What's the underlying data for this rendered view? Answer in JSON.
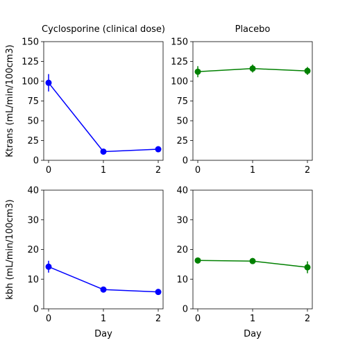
{
  "chart_data": [
    {
      "type": "line",
      "title": "Cyclosporine (clinical dose)",
      "xlabel": "",
      "ylabel": "Ktrans (mL/min/100cm3)",
      "x": [
        0,
        1,
        2
      ],
      "xticks": [
        "0",
        "1",
        "2"
      ],
      "yticks": [
        "0",
        "25",
        "50",
        "75",
        "100",
        "125",
        "150"
      ],
      "ylim": [
        0,
        150
      ],
      "grid": false,
      "series": [
        {
          "values": [
            98,
            11,
            14
          ],
          "errors": [
            11,
            1.5,
            1.5
          ],
          "color": "#0000ff"
        }
      ]
    },
    {
      "type": "line",
      "title": "Placebo",
      "xlabel": "",
      "ylabel": "",
      "x": [
        0,
        1,
        2
      ],
      "xticks": [
        "0",
        "1",
        "2"
      ],
      "yticks": [
        "0",
        "25",
        "50",
        "75",
        "100",
        "125",
        "150"
      ],
      "ylim": [
        0,
        150
      ],
      "grid": false,
      "series": [
        {
          "values": [
            112,
            116,
            113
          ],
          "errors": [
            7,
            5,
            5
          ],
          "color": "#008000"
        }
      ]
    },
    {
      "type": "line",
      "title": "",
      "xlabel": "Day",
      "ylabel": "kbh (mL/min/100cm3)",
      "x": [
        0,
        1,
        2
      ],
      "xticks": [
        "0",
        "1",
        "2"
      ],
      "yticks": [
        "0",
        "10",
        "20",
        "30",
        "40"
      ],
      "ylim": [
        0,
        40
      ],
      "grid": false,
      "series": [
        {
          "values": [
            14.2,
            6.5,
            5.7
          ],
          "errors": [
            2,
            0.5,
            0.5
          ],
          "color": "#0000ff"
        }
      ]
    },
    {
      "type": "line",
      "title": "",
      "xlabel": "Day",
      "ylabel": "",
      "x": [
        0,
        1,
        2
      ],
      "xticks": [
        "0",
        "1",
        "2"
      ],
      "yticks": [
        "0",
        "10",
        "20",
        "30",
        "40"
      ],
      "ylim": [
        0,
        40
      ],
      "grid": false,
      "series": [
        {
          "values": [
            16.3,
            16.1,
            14.0
          ],
          "errors": [
            1,
            1,
            2
          ],
          "color": "#008000"
        }
      ]
    }
  ]
}
